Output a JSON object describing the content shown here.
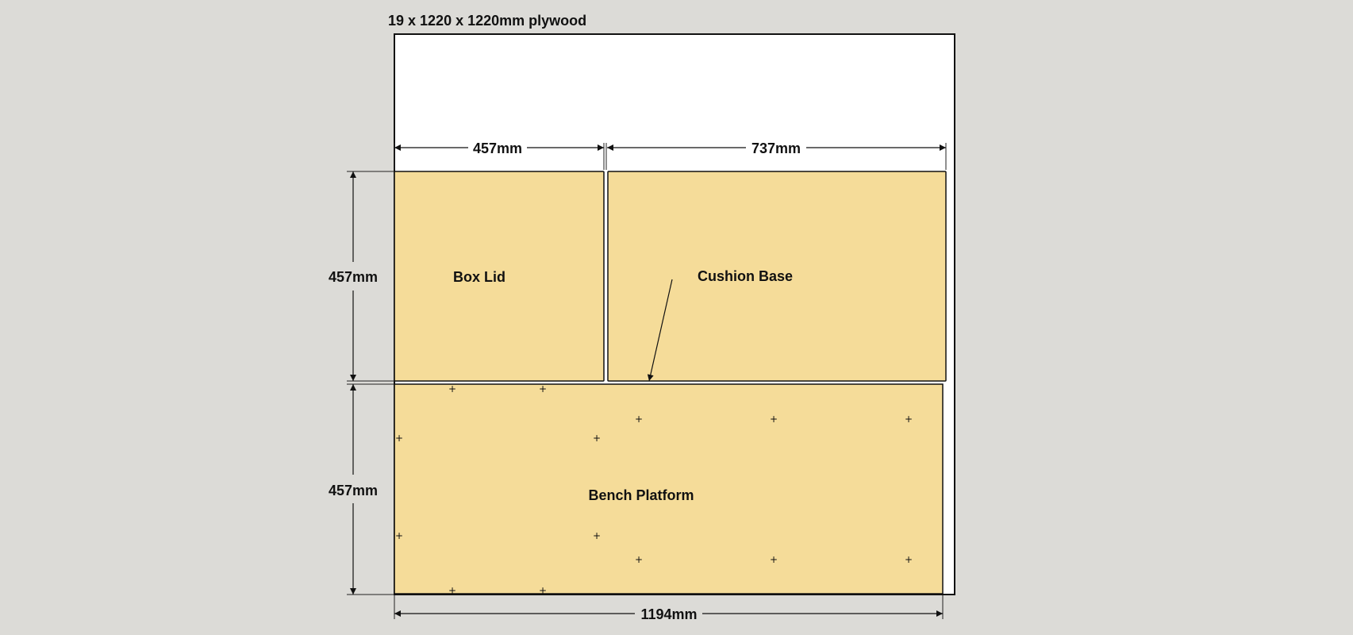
{
  "sheet": {
    "title": "19 x 1220 x 1220mm plywood",
    "sheet_fill": "#ffffff",
    "part_fill": "#f5dc99",
    "background": "#dcdbd7"
  },
  "parts": {
    "box_lid": "Box Lid",
    "cushion_base": "Cushion Base",
    "bench_platform": "Bench Platform"
  },
  "dimensions": {
    "top_left_width": "457mm",
    "top_right_width": "737mm",
    "left_upper_height": "457mm",
    "left_lower_height": "457mm",
    "bottom_width": "1194mm"
  },
  "screw_marks": {
    "symbol": "+"
  }
}
